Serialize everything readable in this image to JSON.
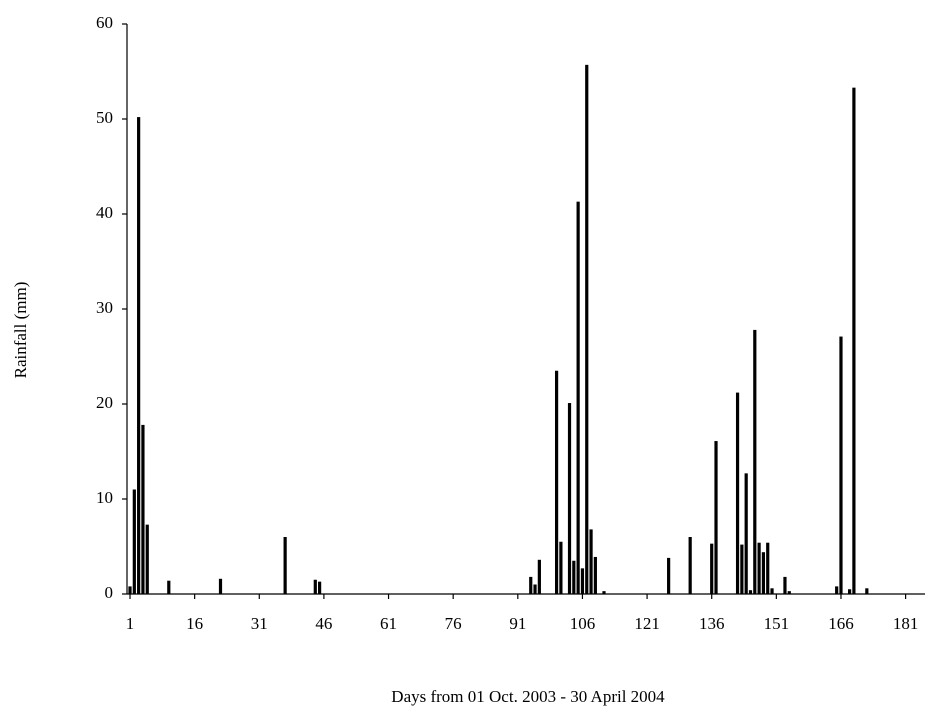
{
  "chart_data": {
    "type": "bar",
    "y_label": "Rainfall (mm)",
    "x_label": "Days from 01 Oct. 2003 - 30 April 2004",
    "color": "#000000",
    "x": [
      1,
      2,
      3,
      4,
      5,
      10,
      22,
      37,
      44,
      45,
      94,
      95,
      96,
      100,
      101,
      103,
      104,
      105,
      106,
      107,
      108,
      109,
      111,
      126,
      131,
      136,
      137,
      142,
      143,
      144,
      145,
      146,
      147,
      148,
      149,
      150,
      153,
      154,
      165,
      166,
      168,
      169,
      172
    ],
    "values": [
      0.8,
      11,
      50.2,
      17.8,
      7.3,
      1.4,
      1.6,
      6,
      1.5,
      1.3,
      1.8,
      1,
      3.6,
      23.5,
      5.5,
      20.1,
      3.5,
      41.3,
      2.7,
      55.7,
      6.8,
      3.9,
      0.3,
      3.8,
      6,
      5.3,
      16.1,
      21.2,
      5.2,
      12.7,
      0.4,
      27.8,
      5.4,
      4.4,
      5.4,
      0.6,
      1.8,
      0.3,
      0.8,
      27.1,
      0.5,
      53.3,
      0.6
    ],
    "xlim": [
      0.3,
      185.5
    ],
    "ylim": [
      0,
      60
    ],
    "xticks": [
      1,
      16,
      31,
      46,
      61,
      76,
      91,
      106,
      121,
      136,
      151,
      166,
      181
    ],
    "yticks": [
      0,
      10,
      20,
      30,
      40,
      50,
      60
    ],
    "grid": false
  }
}
